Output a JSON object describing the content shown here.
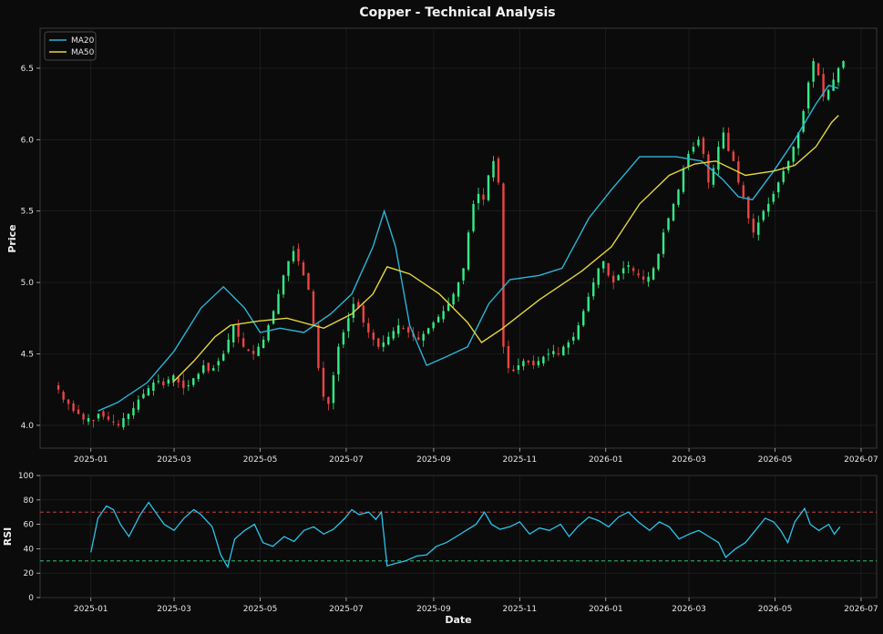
{
  "chart_data": [
    {
      "type": "candlestick",
      "title": "Copper - Technical Analysis",
      "ylabel": "Price",
      "xlabel": "",
      "ylim": [
        3.84,
        6.78
      ],
      "xlim": [
        "2024-11-26",
        "2026-07-12"
      ],
      "yticks": [
        "4.0",
        "4.5",
        "5.0",
        "5.5",
        "6.0",
        "6.5"
      ],
      "xticks": [
        "2025-01",
        "2025-03",
        "2025-05",
        "2025-07",
        "2025-09",
        "2025-11",
        "2026-01",
        "2026-03",
        "2026-05",
        "2026-07"
      ],
      "grid": true,
      "legend_position": "top-left",
      "colors": {
        "up": "#33ee88",
        "down": "#ee4444",
        "ma20": "#29b6d8",
        "ma50": "#e4d63a"
      },
      "series": [
        {
          "name": "MA20",
          "points": [
            [
              "2025-01-06",
              4.1
            ],
            [
              "2025-01-20",
              4.16
            ],
            [
              "2025-02-10",
              4.3
            ],
            [
              "2025-03-01",
              4.52
            ],
            [
              "2025-03-20",
              4.82
            ],
            [
              "2025-04-05",
              4.97
            ],
            [
              "2025-04-20",
              4.82
            ],
            [
              "2025-05-01",
              4.65
            ],
            [
              "2025-05-15",
              4.68
            ],
            [
              "2025-06-01",
              4.65
            ],
            [
              "2025-06-20",
              4.78
            ],
            [
              "2025-07-05",
              4.92
            ],
            [
              "2025-07-20",
              5.25
            ],
            [
              "2025-07-28",
              5.5
            ],
            [
              "2025-08-05",
              5.25
            ],
            [
              "2025-08-15",
              4.7
            ],
            [
              "2025-08-27",
              4.42
            ],
            [
              "2025-09-10",
              4.48
            ],
            [
              "2025-09-25",
              4.55
            ],
            [
              "2025-10-10",
              4.85
            ],
            [
              "2025-10-25",
              5.02
            ],
            [
              "2025-11-15",
              5.05
            ],
            [
              "2025-12-01",
              5.1
            ],
            [
              "2025-12-20",
              5.45
            ],
            [
              "2026-01-05",
              5.65
            ],
            [
              "2026-01-25",
              5.88
            ],
            [
              "2026-02-20",
              5.88
            ],
            [
              "2026-03-10",
              5.85
            ],
            [
              "2026-03-25",
              5.72
            ],
            [
              "2026-04-05",
              5.6
            ],
            [
              "2026-04-15",
              5.58
            ],
            [
              "2026-04-30",
              5.78
            ],
            [
              "2026-05-15",
              6.0
            ],
            [
              "2026-05-30",
              6.25
            ],
            [
              "2026-06-08",
              6.38
            ],
            [
              "2026-06-15",
              6.36
            ]
          ]
        },
        {
          "name": "MA50",
          "points": [
            [
              "2025-02-28",
              4.3
            ],
            [
              "2025-03-15",
              4.45
            ],
            [
              "2025-03-30",
              4.62
            ],
            [
              "2025-04-10",
              4.7
            ],
            [
              "2025-04-30",
              4.73
            ],
            [
              "2025-05-20",
              4.75
            ],
            [
              "2025-06-15",
              4.68
            ],
            [
              "2025-07-05",
              4.78
            ],
            [
              "2025-07-20",
              4.92
            ],
            [
              "2025-07-30",
              5.11
            ],
            [
              "2025-08-15",
              5.06
            ],
            [
              "2025-09-05",
              4.92
            ],
            [
              "2025-09-25",
              4.72
            ],
            [
              "2025-10-05",
              4.58
            ],
            [
              "2025-10-20",
              4.68
            ],
            [
              "2025-11-15",
              4.88
            ],
            [
              "2025-12-15",
              5.08
            ],
            [
              "2026-01-05",
              5.25
            ],
            [
              "2026-01-25",
              5.55
            ],
            [
              "2026-02-15",
              5.75
            ],
            [
              "2026-03-05",
              5.83
            ],
            [
              "2026-03-20",
              5.85
            ],
            [
              "2026-04-10",
              5.75
            ],
            [
              "2026-04-30",
              5.78
            ],
            [
              "2026-05-15",
              5.82
            ],
            [
              "2026-05-30",
              5.95
            ],
            [
              "2026-06-10",
              6.12
            ],
            [
              "2026-06-15",
              6.17
            ]
          ]
        }
      ],
      "candles": {
        "start": "2024-12-09",
        "step_days": 1,
        "note_source": "estimated daily closes read from the plot",
        "closes": [
          4.25,
          4.18,
          4.15,
          4.1,
          4.08,
          4.04,
          4.05,
          4.03,
          4.08,
          4.06,
          4.04,
          4.02,
          4.0,
          4.05,
          4.08,
          4.12,
          4.18,
          4.22,
          4.26,
          4.3,
          4.31,
          4.28,
          4.32,
          4.35,
          4.3,
          4.26,
          4.28,
          4.33,
          4.36,
          4.42,
          4.38,
          4.4,
          4.45,
          4.5,
          4.6,
          4.7,
          4.62,
          4.55,
          4.52,
          4.5,
          4.55,
          4.6,
          4.7,
          4.8,
          4.92,
          5.05,
          5.15,
          5.22,
          5.15,
          5.05,
          4.95,
          4.7,
          4.4,
          4.2,
          4.15,
          4.35,
          4.55,
          4.65,
          4.75,
          4.85,
          4.82,
          4.72,
          4.65,
          4.6,
          4.55,
          4.58,
          4.62,
          4.66,
          4.7,
          4.68,
          4.65,
          4.62,
          4.6,
          4.64,
          4.68,
          4.72,
          4.76,
          4.8,
          4.85,
          4.92,
          5.0,
          5.1,
          5.35,
          5.55,
          5.62,
          5.58,
          5.75,
          5.85,
          5.7,
          4.55,
          4.4,
          4.38,
          4.42,
          4.45,
          4.44,
          4.42,
          4.45,
          4.48,
          4.5,
          4.52,
          4.5,
          4.55,
          4.58,
          4.62,
          4.7,
          4.8,
          4.9,
          5.0,
          5.1,
          5.15,
          5.05,
          5.0,
          5.05,
          5.1,
          5.12,
          5.08,
          5.05,
          5.02,
          5.04,
          5.1,
          5.2,
          5.35,
          5.45,
          5.55,
          5.65,
          5.8,
          5.9,
          5.95,
          6.0,
          5.9,
          5.7,
          5.8,
          5.95,
          6.05,
          5.92,
          5.85,
          5.7,
          5.6,
          5.45,
          5.35,
          5.42,
          5.5,
          5.55,
          5.62,
          5.7,
          5.78,
          5.85,
          5.95,
          6.05,
          6.2,
          6.4,
          6.55,
          6.45,
          6.3,
          6.35,
          6.42,
          6.5,
          6.55
        ]
      }
    },
    {
      "type": "line",
      "ylabel": "RSI",
      "xlabel": "Date",
      "ylim": [
        0,
        100
      ],
      "yticks": [
        "0",
        "20",
        "40",
        "60",
        "80",
        "100"
      ],
      "xticks": [
        "2025-01",
        "2025-03",
        "2025-05",
        "2025-07",
        "2025-09",
        "2025-11",
        "2026-01",
        "2026-03",
        "2026-05",
        "2026-07"
      ],
      "grid": true,
      "reference_lines": [
        {
          "value": 70,
          "color": "#e04848"
        },
        {
          "value": 30,
          "color": "#33dd88"
        }
      ],
      "series": [
        {
          "name": "RSI",
          "color": "#29c4ea",
          "points": [
            [
              "2025-01-01",
              37
            ],
            [
              "2025-01-06",
              65
            ],
            [
              "2025-01-12",
              75
            ],
            [
              "2025-01-17",
              72
            ],
            [
              "2025-01-22",
              60
            ],
            [
              "2025-01-28",
              50
            ],
            [
              "2025-02-05",
              68
            ],
            [
              "2025-02-11",
              78
            ],
            [
              "2025-02-17",
              68
            ],
            [
              "2025-02-22",
              60
            ],
            [
              "2025-03-01",
              55
            ],
            [
              "2025-03-08",
              65
            ],
            [
              "2025-03-15",
              72
            ],
            [
              "2025-03-20",
              68
            ],
            [
              "2025-03-28",
              58
            ],
            [
              "2025-04-03",
              35
            ],
            [
              "2025-04-08",
              25
            ],
            [
              "2025-04-13",
              48
            ],
            [
              "2025-04-20",
              55
            ],
            [
              "2025-04-27",
              60
            ],
            [
              "2025-05-03",
              45
            ],
            [
              "2025-05-10",
              42
            ],
            [
              "2025-05-18",
              50
            ],
            [
              "2025-05-25",
              46
            ],
            [
              "2025-06-01",
              55
            ],
            [
              "2025-06-08",
              58
            ],
            [
              "2025-06-15",
              52
            ],
            [
              "2025-06-22",
              56
            ],
            [
              "2025-06-30",
              65
            ],
            [
              "2025-07-05",
              72
            ],
            [
              "2025-07-10",
              68
            ],
            [
              "2025-07-17",
              70
            ],
            [
              "2025-07-22",
              64
            ],
            [
              "2025-07-26",
              70
            ],
            [
              "2025-07-30",
              26
            ],
            [
              "2025-08-05",
              28
            ],
            [
              "2025-08-12",
              30
            ],
            [
              "2025-08-20",
              34
            ],
            [
              "2025-08-27",
              35
            ],
            [
              "2025-09-03",
              42
            ],
            [
              "2025-09-10",
              45
            ],
            [
              "2025-09-17",
              50
            ],
            [
              "2025-09-24",
              55
            ],
            [
              "2025-10-01",
              60
            ],
            [
              "2025-10-07",
              70
            ],
            [
              "2025-10-12",
              60
            ],
            [
              "2025-10-18",
              56
            ],
            [
              "2025-10-25",
              58
            ],
            [
              "2025-11-01",
              62
            ],
            [
              "2025-11-08",
              52
            ],
            [
              "2025-11-15",
              57
            ],
            [
              "2025-11-22",
              55
            ],
            [
              "2025-11-30",
              60
            ],
            [
              "2025-12-06",
              50
            ],
            [
              "2025-12-12",
              58
            ],
            [
              "2025-12-20",
              66
            ],
            [
              "2025-12-27",
              63
            ],
            [
              "2026-01-03",
              58
            ],
            [
              "2026-01-10",
              66
            ],
            [
              "2026-01-17",
              70
            ],
            [
              "2026-01-24",
              62
            ],
            [
              "2026-02-01",
              55
            ],
            [
              "2026-02-08",
              62
            ],
            [
              "2026-02-15",
              58
            ],
            [
              "2026-02-22",
              48
            ],
            [
              "2026-03-01",
              52
            ],
            [
              "2026-03-08",
              55
            ],
            [
              "2026-03-15",
              50
            ],
            [
              "2026-03-22",
              45
            ],
            [
              "2026-03-27",
              33
            ],
            [
              "2026-04-03",
              40
            ],
            [
              "2026-04-10",
              45
            ],
            [
              "2026-04-17",
              55
            ],
            [
              "2026-04-24",
              65
            ],
            [
              "2026-04-30",
              62
            ],
            [
              "2026-05-05",
              55
            ],
            [
              "2026-05-10",
              45
            ],
            [
              "2026-05-15",
              62
            ],
            [
              "2026-05-22",
              73
            ],
            [
              "2026-05-26",
              60
            ],
            [
              "2026-06-01",
              55
            ],
            [
              "2026-06-08",
              60
            ],
            [
              "2026-06-12",
              52
            ],
            [
              "2026-06-16",
              58
            ]
          ]
        }
      ]
    }
  ]
}
